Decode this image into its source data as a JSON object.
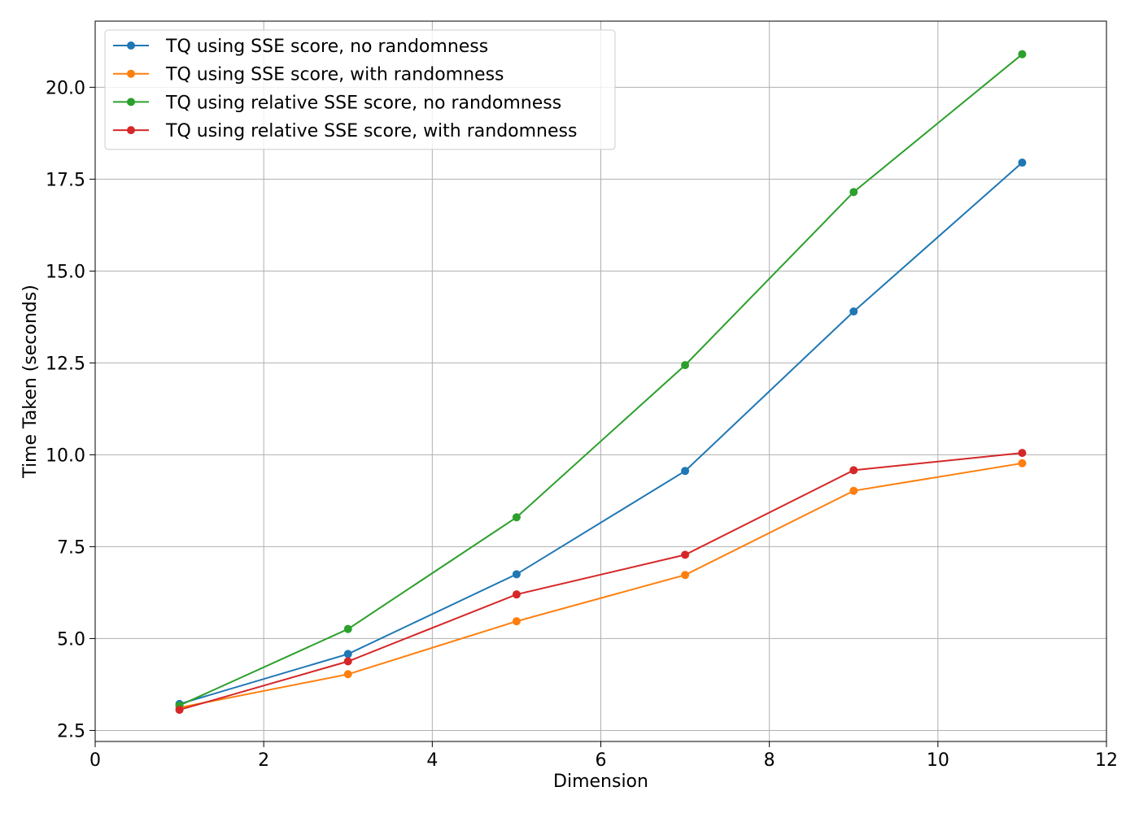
{
  "chart_data": {
    "type": "line",
    "title": "",
    "xlabel": "Dimension",
    "ylabel": "Time Taken (seconds)",
    "xlim": [
      0,
      12
    ],
    "ylim": [
      2.2,
      21.8
    ],
    "x_ticks": [
      0,
      2,
      4,
      6,
      8,
      10,
      12
    ],
    "y_ticks": [
      2.5,
      5.0,
      7.5,
      10.0,
      12.5,
      15.0,
      17.5,
      20.0
    ],
    "x_tick_labels": [
      "0",
      "2",
      "4",
      "6",
      "8",
      "10",
      "12"
    ],
    "y_tick_labels": [
      "2.5",
      "5.0",
      "7.5",
      "10.0",
      "12.5",
      "15.0",
      "17.5",
      "20.0"
    ],
    "grid": true,
    "legend_position": "top-left",
    "x": [
      1,
      3,
      5,
      7,
      9,
      11
    ],
    "series": [
      {
        "name": "TQ using SSE score, no randomness",
        "color": "#1f77b4",
        "values": [
          3.22,
          4.58,
          6.75,
          9.56,
          13.9,
          17.95
        ]
      },
      {
        "name": "TQ using SSE score, with randomness",
        "color": "#ff7f0e",
        "values": [
          3.12,
          4.03,
          5.47,
          6.73,
          9.02,
          9.77
        ]
      },
      {
        "name": "TQ using relative SSE score, no randomness",
        "color": "#2ca02c",
        "values": [
          3.18,
          5.26,
          8.3,
          12.44,
          17.15,
          20.9
        ]
      },
      {
        "name": "TQ using relative SSE score, with randomness",
        "color": "#d62728",
        "values": [
          3.06,
          4.38,
          6.2,
          7.28,
          9.58,
          10.05
        ]
      }
    ]
  }
}
